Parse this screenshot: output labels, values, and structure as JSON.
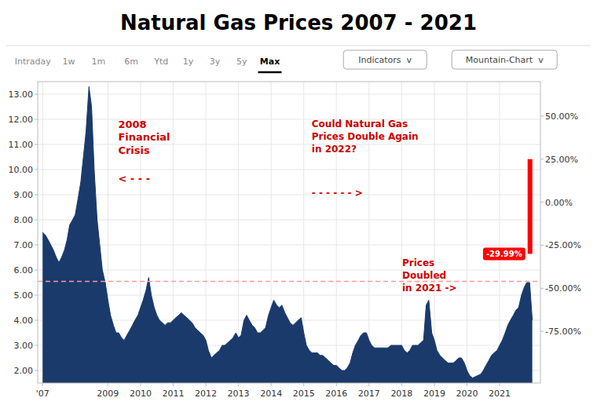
{
  "chart_data": {
    "type": "area",
    "title": "Natural Gas Prices 2007 - 2021",
    "x": [
      2007.0,
      2007.08,
      2007.17,
      2007.25,
      2007.33,
      2007.42,
      2007.5,
      2007.58,
      2007.67,
      2007.75,
      2007.83,
      2007.92,
      2008.0,
      2008.08,
      2008.17,
      2008.25,
      2008.33,
      2008.42,
      2008.5,
      2008.58,
      2008.67,
      2008.75,
      2008.83,
      2008.92,
      2009.0,
      2009.08,
      2009.17,
      2009.25,
      2009.33,
      2009.42,
      2009.5,
      2009.58,
      2009.67,
      2009.75,
      2009.83,
      2009.92,
      2010.0,
      2010.08,
      2010.17,
      2010.25,
      2010.33,
      2010.42,
      2010.5,
      2010.58,
      2010.67,
      2010.75,
      2010.83,
      2010.92,
      2011.0,
      2011.08,
      2011.17,
      2011.25,
      2011.33,
      2011.42,
      2011.5,
      2011.58,
      2011.67,
      2011.75,
      2011.83,
      2011.92,
      2012.0,
      2012.08,
      2012.17,
      2012.25,
      2012.33,
      2012.42,
      2012.5,
      2012.58,
      2012.67,
      2012.75,
      2012.83,
      2012.92,
      2013.0,
      2013.08,
      2013.17,
      2013.25,
      2013.33,
      2013.42,
      2013.5,
      2013.58,
      2013.67,
      2013.75,
      2013.83,
      2013.92,
      2014.0,
      2014.08,
      2014.17,
      2014.25,
      2014.33,
      2014.42,
      2014.5,
      2014.58,
      2014.67,
      2014.75,
      2014.83,
      2014.92,
      2015.0,
      2015.08,
      2015.17,
      2015.25,
      2015.33,
      2015.42,
      2015.5,
      2015.58,
      2015.67,
      2015.75,
      2015.83,
      2015.92,
      2016.0,
      2016.08,
      2016.17,
      2016.25,
      2016.33,
      2016.42,
      2016.5,
      2016.58,
      2016.67,
      2016.75,
      2016.83,
      2016.92,
      2017.0,
      2017.08,
      2017.17,
      2017.25,
      2017.33,
      2017.42,
      2017.5,
      2017.58,
      2017.67,
      2017.75,
      2017.83,
      2017.92,
      2018.0,
      2018.08,
      2018.17,
      2018.25,
      2018.33,
      2018.42,
      2018.5,
      2018.58,
      2018.67,
      2018.75,
      2018.83,
      2018.92,
      2019.0,
      2019.08,
      2019.17,
      2019.25,
      2019.33,
      2019.42,
      2019.5,
      2019.58,
      2019.67,
      2019.75,
      2019.83,
      2019.92,
      2020.0,
      2020.08,
      2020.17,
      2020.25,
      2020.33,
      2020.42,
      2020.5,
      2020.58,
      2020.67,
      2020.75,
      2020.83,
      2020.92,
      2021.0,
      2021.08,
      2021.17,
      2021.25,
      2021.33,
      2021.42,
      2021.5,
      2021.58,
      2021.67,
      2021.75,
      2021.83,
      2021.92,
      2022.0
    ],
    "values": [
      7.5,
      7.4,
      7.2,
      7.0,
      6.8,
      6.5,
      6.3,
      6.5,
      6.8,
      7.2,
      7.8,
      8.0,
      8.2,
      8.8,
      9.5,
      10.5,
      11.5,
      13.3,
      12.5,
      10.0,
      8.0,
      7.0,
      6.0,
      5.5,
      4.8,
      4.2,
      3.8,
      3.5,
      3.5,
      3.3,
      3.2,
      3.4,
      3.6,
      3.8,
      4.0,
      4.2,
      4.5,
      4.8,
      5.2,
      5.7,
      5.0,
      4.5,
      4.2,
      4.0,
      3.9,
      3.8,
      3.9,
      3.9,
      4.0,
      4.1,
      4.2,
      4.3,
      4.2,
      4.1,
      4.0,
      3.9,
      3.7,
      3.6,
      3.5,
      3.4,
      3.2,
      2.8,
      2.5,
      2.6,
      2.7,
      2.8,
      3.0,
      3.0,
      3.1,
      3.2,
      3.3,
      3.5,
      3.3,
      3.4,
      4.0,
      4.2,
      4.0,
      3.8,
      3.7,
      3.5,
      3.5,
      3.6,
      3.7,
      4.2,
      4.5,
      4.8,
      4.6,
      4.5,
      4.6,
      4.3,
      4.1,
      3.9,
      3.8,
      3.9,
      4.0,
      4.1,
      3.5,
      3.0,
      2.8,
      2.7,
      2.7,
      2.7,
      2.6,
      2.6,
      2.5,
      2.4,
      2.3,
      2.2,
      2.2,
      2.1,
      2.0,
      2.0,
      2.1,
      2.3,
      2.7,
      3.0,
      3.2,
      3.4,
      3.5,
      3.5,
      3.2,
      3.0,
      2.9,
      2.9,
      2.9,
      2.9,
      2.9,
      2.9,
      3.0,
      3.0,
      3.0,
      3.0,
      3.0,
      2.8,
      2.7,
      2.8,
      3.0,
      3.0,
      3.0,
      3.1,
      3.2,
      4.6,
      4.8,
      3.5,
      3.2,
      2.8,
      2.6,
      2.5,
      2.4,
      2.3,
      2.3,
      2.3,
      2.4,
      2.5,
      2.5,
      2.3,
      2.0,
      1.8,
      1.7,
      1.75,
      1.8,
      1.85,
      2.0,
      2.2,
      2.4,
      2.6,
      2.7,
      2.8,
      3.0,
      3.2,
      3.5,
      3.8,
      4.0,
      4.2,
      4.4,
      4.5,
      5.0,
      5.3,
      5.5,
      5.5,
      4.0
    ],
    "color": "#1a3a6b",
    "xlim": [
      2006.85,
      2022.25
    ],
    "xticks": [
      {
        "value": 2007.0,
        "label": "'07"
      },
      2009,
      2010,
      2011,
      2012,
      2013,
      2014,
      2015,
      2016,
      2017,
      2018,
      2019,
      2020,
      2021
    ],
    "ylim": [
      1.5,
      13.5
    ],
    "yticks": [
      {
        "value": 2.0,
        "label": "2.00"
      },
      {
        "value": 3.0,
        "label": "3.00"
      },
      {
        "value": 4.0,
        "label": "4.00"
      },
      {
        "value": 5.0,
        "label": "5.00"
      },
      {
        "value": 6.0,
        "label": "6.00"
      },
      {
        "value": 7.0,
        "label": "7.00"
      },
      {
        "value": 8.0,
        "label": "8.00"
      },
      {
        "value": 9.0,
        "label": "9.00"
      },
      {
        "value": 10.0,
        "label": "10.00"
      },
      {
        "value": 11.0,
        "label": "11.00"
      },
      {
        "value": 12.0,
        "label": "12.00"
      },
      {
        "value": 13.0,
        "label": "13.00"
      }
    ],
    "y2lim": [
      -105.0,
      70.0
    ],
    "y2ticks": [
      {
        "value": -75.0,
        "label": "-75.00%"
      },
      {
        "value": -50.0,
        "label": "-50.00%"
      },
      {
        "value": -25.0,
        "label": "-25.00%"
      },
      {
        "value": 0.0,
        "label": "0.00%"
      },
      {
        "value": 25.0,
        "label": "25.00%"
      },
      {
        "value": 50.0,
        "label": "50.00%"
      }
    ],
    "grid": true,
    "reference_line": {
      "value": 5.55,
      "color": "#ff9999",
      "line_style": "dashed"
    },
    "change_bar": {
      "x": 2021.93,
      "values": [
        -29.99,
        25.0
      ],
      "label": "-29.99%",
      "color": "#ff0000",
      "label_color": "#ffffff",
      "axis": "y2"
    },
    "annotations": [
      {
        "text": "2008\nFinancial\nCrisis",
        "color": "#cc0000"
      },
      {
        "text": "< - - -",
        "color": "#cc0000"
      },
      {
        "text": "Could Natural Gas\nPrices Double Again\nin 2022?",
        "color": "#cc0000"
      },
      {
        "text": "- - - - - - >",
        "color": "#cc0000"
      },
      {
        "text": "Prices\nDoubled\nin 2021 ->",
        "color": "#cc0000"
      }
    ],
    "toolbar": {
      "items": [
        "Intraday",
        "1w",
        "1m",
        "6m",
        "Ytd",
        "1y",
        "3y",
        "5y",
        "Max"
      ],
      "active": "Max",
      "buttons": [
        "Indicators  v",
        "Mountain-Chart  v"
      ]
    }
  }
}
